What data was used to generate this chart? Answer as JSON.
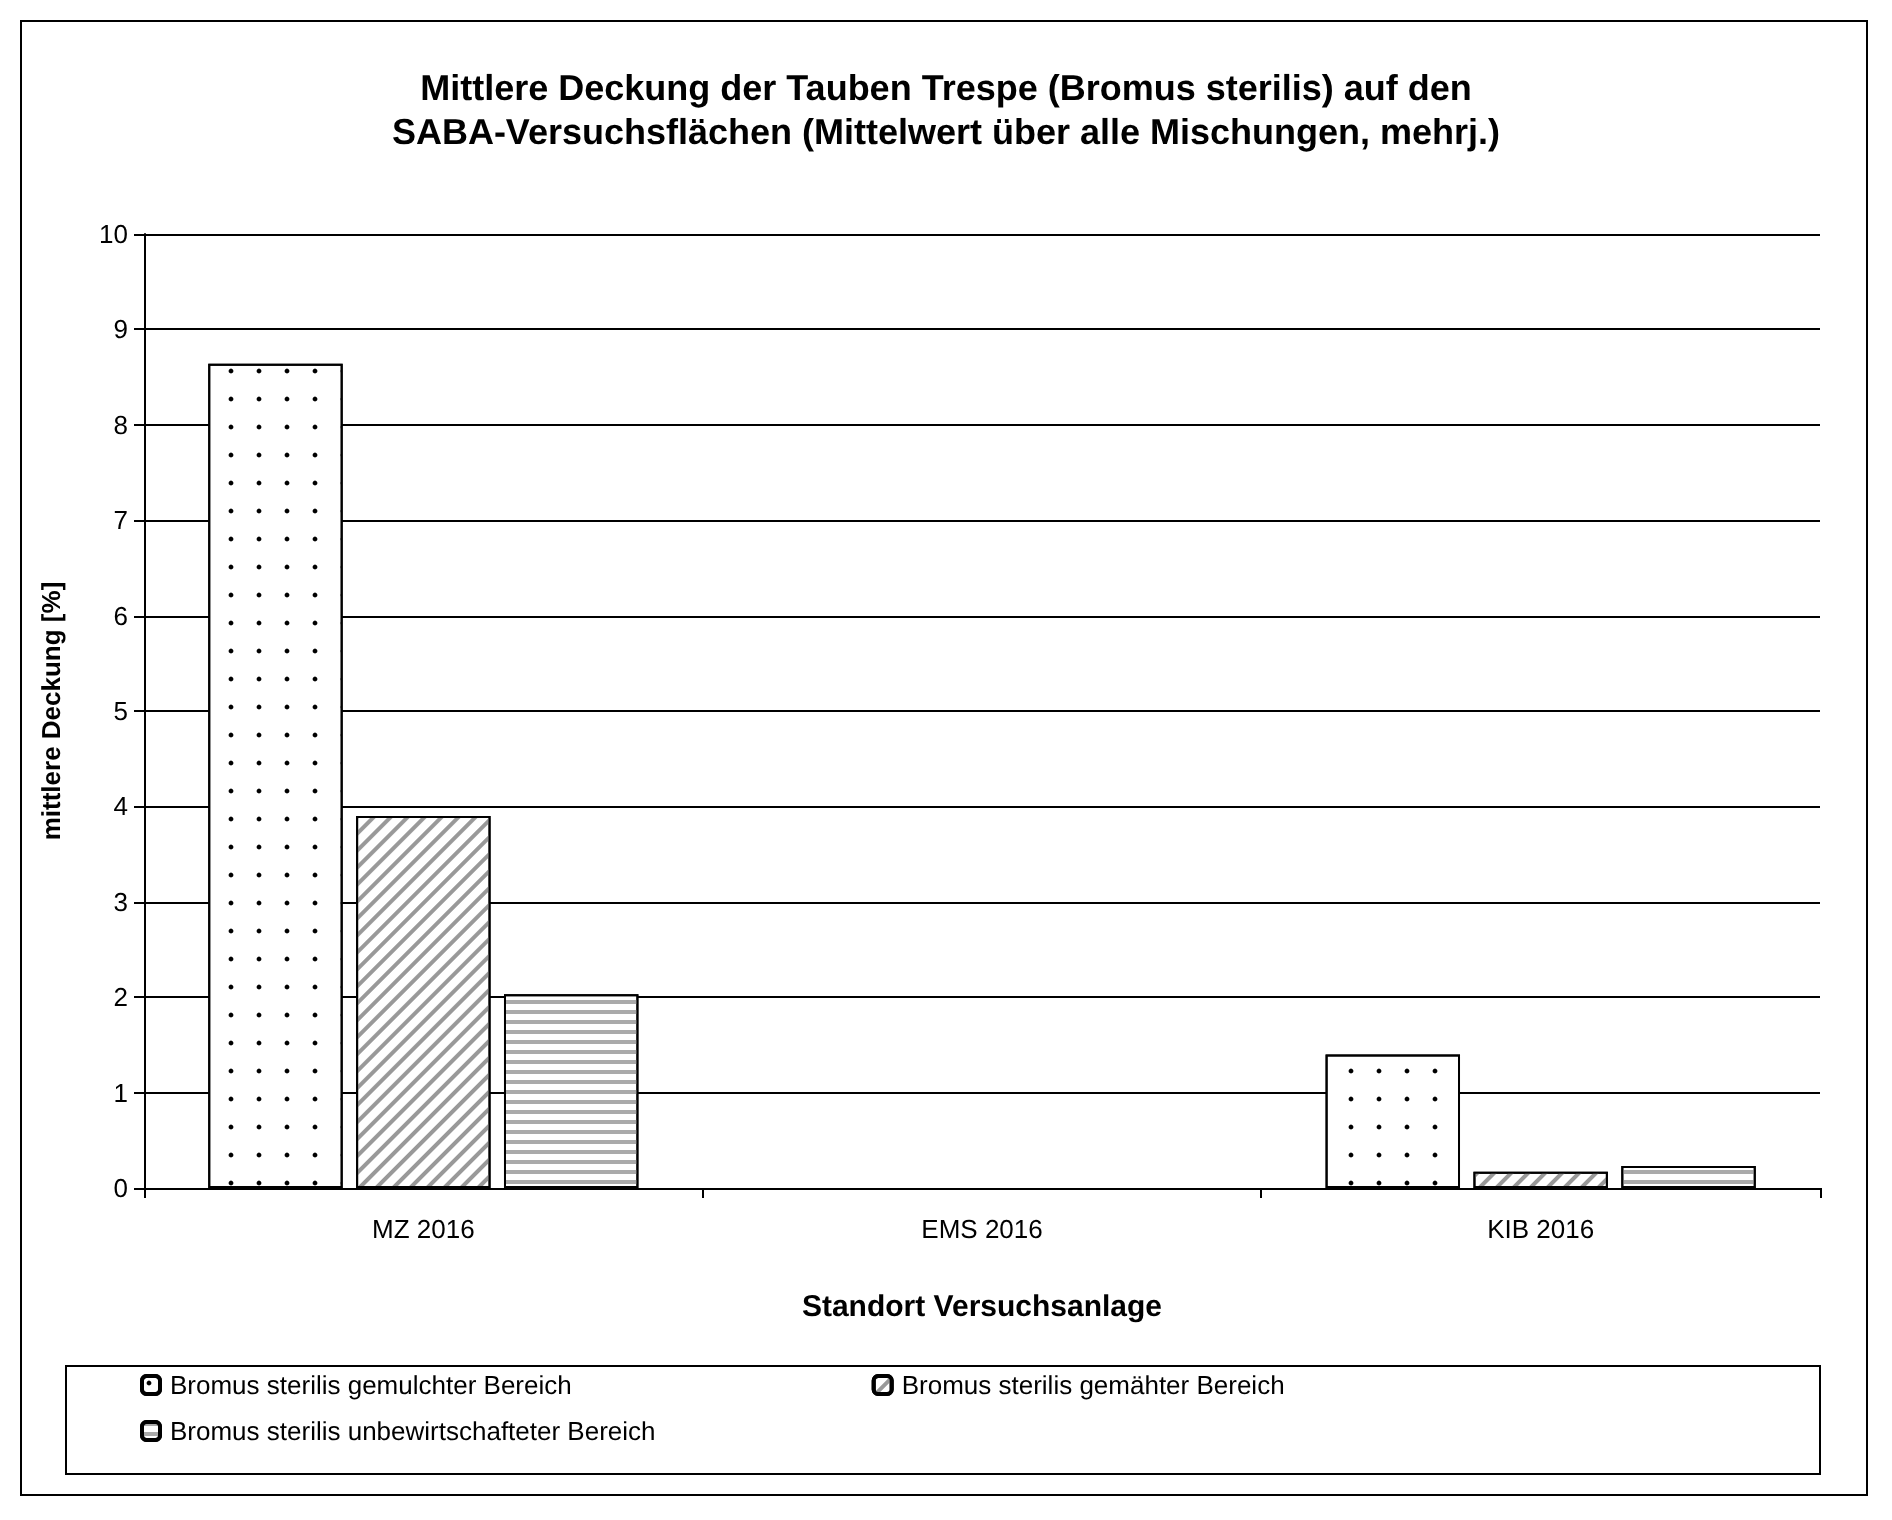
{
  "chart_data": {
    "type": "bar",
    "title": "Mittlere Deckung der Tauben Trespe (Bromus sterilis) auf den\nSABA-Versuchsflächen (Mittelwert über alle Mischungen, mehrj.)",
    "xlabel": "Standort Versuchsanlage",
    "ylabel": "mittlere Deckung [%]",
    "categories": [
      "MZ 2016",
      "EMS 2016",
      "KIB 2016"
    ],
    "series": [
      {
        "name": "Bromus sterilis gemulchter Bereich",
        "color": "#ffffff",
        "values": [
          8.64,
          null,
          1.4
        ]
      },
      {
        "name": "Bromus sterilis gemähter Bereich",
        "color": "#ffffff",
        "values": [
          3.9,
          null,
          0.17
        ]
      },
      {
        "name": "Bromus sterilis unbewirtschafteter Bereich",
        "color": "#ffffff",
        "values": [
          2.03,
          null,
          0.23
        ]
      }
    ],
    "ylim": [
      0,
      10
    ],
    "yticks": [
      0,
      1,
      2,
      3,
      4,
      5,
      6,
      7,
      8,
      9,
      10
    ],
    "grid": "y",
    "legend": "bottom"
  }
}
